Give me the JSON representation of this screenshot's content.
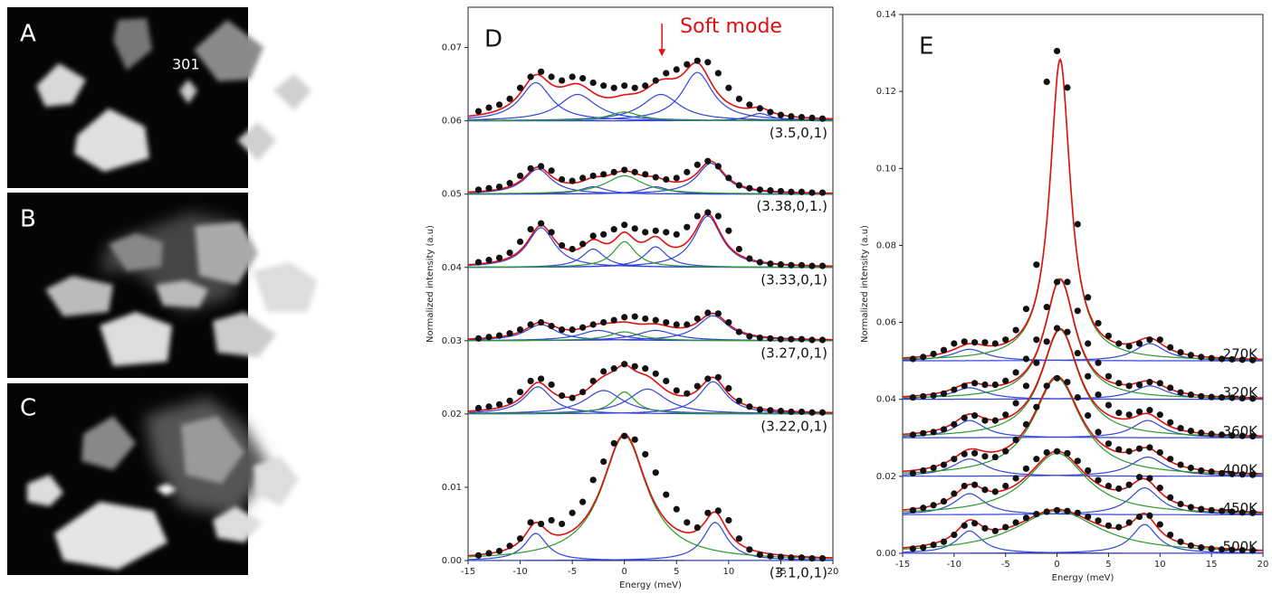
{
  "images": [
    {
      "label": "A",
      "annotation": "301"
    },
    {
      "label": "B"
    },
    {
      "label": "C"
    }
  ],
  "chart_data": [
    {
      "type": "spectra",
      "panel_label": "D",
      "annotation": {
        "text": "Soft mode",
        "x": 3.6,
        "y": 0.0688
      },
      "xlabel": "Energy (meV)",
      "ylabel": "Normalized intensity (a.u)",
      "xlim": [
        -15,
        20
      ],
      "xticks": [
        -15,
        -10,
        -5,
        0,
        5,
        10,
        15,
        20
      ],
      "ylim": [
        0,
        0.0755
      ],
      "yticks": [
        {
          "value": 0,
          "label": "0.00"
        },
        0.01,
        0.02,
        0.03,
        0.04,
        0.05,
        0.06,
        0.07
      ],
      "x": [
        -14,
        -13,
        -12,
        -11,
        -10,
        -9,
        -8,
        -7,
        -6,
        -5,
        -4,
        -3,
        -2,
        -1,
        0,
        1,
        2,
        3,
        4,
        5,
        6,
        7,
        8,
        9,
        10,
        11,
        12,
        13,
        14,
        15,
        16,
        17,
        18,
        19
      ],
      "point_color": "#111111",
      "fit_color": "#e01010",
      "series": [
        {
          "name": "(3.5,0,1)",
          "baseline": 0.06,
          "values": [
            0.0613,
            0.0618,
            0.0622,
            0.063,
            0.0645,
            0.066,
            0.0667,
            0.066,
            0.0655,
            0.066,
            0.0658,
            0.0652,
            0.0648,
            0.0645,
            0.0648,
            0.0645,
            0.0648,
            0.0655,
            0.0665,
            0.067,
            0.0677,
            0.0682,
            0.068,
            0.0665,
            0.0645,
            0.063,
            0.0622,
            0.0617,
            0.0612,
            0.0608,
            0.0606,
            0.0605,
            0.0604,
            0.0603
          ],
          "peaks": [
            {
              "center": -8.5,
              "height": 0.0052,
              "width": 1.8,
              "color": "#3344dd"
            },
            {
              "center": -4.5,
              "height": 0.0036,
              "width": 2.2,
              "color": "#3344dd"
            },
            {
              "center": 3.5,
              "height": 0.0036,
              "width": 2.2,
              "color": "#3344dd"
            },
            {
              "center": 7,
              "height": 0.0066,
              "width": 1.8,
              "color": "#3344dd"
            },
            {
              "center": 13,
              "height": 0.001,
              "width": 1.3,
              "color": "#3344dd"
            },
            {
              "center": 0,
              "height": 0.0012,
              "width": 1.8,
              "color": "#2a9a2a"
            }
          ]
        },
        {
          "name": "(3.38,0,1.)",
          "baseline": 0.05,
          "values": [
            0.0506,
            0.0508,
            0.051,
            0.0515,
            0.0525,
            0.0535,
            0.0538,
            0.0532,
            0.052,
            0.0518,
            0.0522,
            0.0525,
            0.0527,
            0.053,
            0.0533,
            0.053,
            0.0527,
            0.0523,
            0.052,
            0.0522,
            0.053,
            0.054,
            0.0545,
            0.0538,
            0.0522,
            0.0512,
            0.0508,
            0.0506,
            0.0505,
            0.0504,
            0.0503,
            0.0503,
            0.0502,
            0.0502
          ],
          "peaks": [
            {
              "center": -8.3,
              "height": 0.0034,
              "width": 1.6,
              "color": "#3344dd"
            },
            {
              "center": 8.3,
              "height": 0.0042,
              "width": 1.6,
              "color": "#3344dd"
            },
            {
              "center": -3,
              "height": 0.001,
              "width": 1.5,
              "color": "#3344dd"
            },
            {
              "center": 3,
              "height": 0.001,
              "width": 1.5,
              "color": "#3344dd"
            },
            {
              "center": 0,
              "height": 0.0025,
              "width": 2.2,
              "color": "#2a9a2a"
            }
          ]
        },
        {
          "name": "(3.33,0,1)",
          "baseline": 0.04,
          "values": [
            0.0407,
            0.041,
            0.0413,
            0.042,
            0.0435,
            0.0452,
            0.046,
            0.0448,
            0.043,
            0.0425,
            0.0432,
            0.0443,
            0.0445,
            0.0452,
            0.0458,
            0.0453,
            0.0448,
            0.045,
            0.0448,
            0.0445,
            0.0455,
            0.047,
            0.0475,
            0.047,
            0.045,
            0.0425,
            0.0412,
            0.0407,
            0.0405,
            0.0404,
            0.0403,
            0.0403,
            0.0402,
            0.0402
          ],
          "peaks": [
            {
              "center": -8,
              "height": 0.0054,
              "width": 1.6,
              "color": "#3344dd"
            },
            {
              "center": 8,
              "height": 0.007,
              "width": 1.6,
              "color": "#3344dd"
            },
            {
              "center": -3,
              "height": 0.0025,
              "width": 1.3,
              "color": "#3344dd"
            },
            {
              "center": 3,
              "height": 0.0028,
              "width": 1.3,
              "color": "#3344dd"
            },
            {
              "center": 0,
              "height": 0.0035,
              "width": 1.3,
              "color": "#2a9a2a"
            }
          ]
        },
        {
          "name": "(3.27,0,1)",
          "baseline": 0.03,
          "values": [
            0.0303,
            0.0305,
            0.0307,
            0.031,
            0.0315,
            0.0322,
            0.0325,
            0.032,
            0.0315,
            0.0315,
            0.0318,
            0.0322,
            0.0325,
            0.0328,
            0.0332,
            0.0333,
            0.033,
            0.0328,
            0.0325,
            0.0322,
            0.0322,
            0.033,
            0.0338,
            0.0337,
            0.0325,
            0.0312,
            0.0306,
            0.0304,
            0.0303,
            0.0302,
            0.0302,
            0.0302,
            0.0301,
            0.0301
          ],
          "peaks": [
            {
              "center": -8,
              "height": 0.0022,
              "width": 1.8,
              "color": "#3344dd"
            },
            {
              "center": 8.5,
              "height": 0.0034,
              "width": 1.8,
              "color": "#3344dd"
            },
            {
              "center": -2.5,
              "height": 0.0014,
              "width": 2.2,
              "color": "#3344dd"
            },
            {
              "center": 3,
              "height": 0.0014,
              "width": 2.2,
              "color": "#3344dd"
            },
            {
              "center": 0,
              "height": 0.0012,
              "width": 1.8,
              "color": "#2a9a2a"
            }
          ]
        },
        {
          "name": "(3.22,0,1)",
          "baseline": 0.02,
          "values": [
            0.0208,
            0.021,
            0.0213,
            0.0218,
            0.023,
            0.0245,
            0.0248,
            0.024,
            0.0225,
            0.0222,
            0.023,
            0.0245,
            0.0258,
            0.0262,
            0.0268,
            0.0265,
            0.0262,
            0.0255,
            0.0245,
            0.0232,
            0.0228,
            0.0238,
            0.0248,
            0.025,
            0.0235,
            0.0218,
            0.021,
            0.0206,
            0.0205,
            0.0204,
            0.0203,
            0.0203,
            0.0202,
            0.0202
          ],
          "peaks": [
            {
              "center": -8.3,
              "height": 0.0037,
              "width": 1.6,
              "color": "#3344dd"
            },
            {
              "center": 8.5,
              "height": 0.0044,
              "width": 1.6,
              "color": "#3344dd"
            },
            {
              "center": -2,
              "height": 0.0032,
              "width": 2.2,
              "color": "#3344dd"
            },
            {
              "center": 2.2,
              "height": 0.0034,
              "width": 2.2,
              "color": "#3344dd"
            },
            {
              "center": 0,
              "height": 0.003,
              "width": 1.3,
              "color": "#2a9a2a"
            }
          ]
        },
        {
          "name": "(3.1,0,1)",
          "baseline": 0,
          "values": [
            0.0007,
            0.001,
            0.0013,
            0.002,
            0.003,
            0.0052,
            0.005,
            0.0055,
            0.005,
            0.0065,
            0.008,
            0.011,
            0.0135,
            0.016,
            0.017,
            0.0165,
            0.0145,
            0.012,
            0.009,
            0.007,
            0.0052,
            0.0045,
            0.0065,
            0.0068,
            0.0055,
            0.003,
            0.0015,
            0.0008,
            0.0006,
            0.0005,
            0.0004,
            0.0004,
            0.0003,
            0.0003
          ],
          "peaks": [
            {
              "center": -8.5,
              "height": 0.0037,
              "width": 1.3,
              "color": "#3344dd"
            },
            {
              "center": 8.7,
              "height": 0.0052,
              "width": 1.4,
              "color": "#3344dd"
            },
            {
              "center": 0,
              "height": 0.017,
              "width": 2.6,
              "color": "#2a9a2a"
            }
          ]
        }
      ]
    },
    {
      "type": "spectra",
      "panel_label": "E",
      "xlabel": "Energy (meV)",
      "ylabel": "Normalized intensity (a.u)",
      "xlim": [
        -15,
        20
      ],
      "xticks": [
        -15,
        -10,
        -5,
        0,
        5,
        10,
        15,
        20
      ],
      "ylim": [
        0,
        0.14
      ],
      "yticks": [
        {
          "value": 0,
          "label": "0.00"
        },
        0.02,
        0.04,
        0.06,
        0.08,
        {
          "value": 0.1,
          "label": "0.10"
        },
        0.12,
        0.14
      ],
      "x": [
        -14,
        -13,
        -12,
        -11,
        -10,
        -9,
        -8,
        -7,
        -6,
        -5,
        -4,
        -3,
        -2,
        -1,
        0,
        1,
        2,
        3,
        4,
        5,
        6,
        7,
        8,
        9,
        10,
        11,
        12,
        13,
        14,
        15,
        16,
        17,
        18,
        19
      ],
      "point_color": "#111111",
      "fit_color": "#e01010",
      "series": [
        {
          "name": "270K",
          "baseline": 0.05,
          "values": [
            0.0505,
            0.051,
            0.0518,
            0.0528,
            0.0545,
            0.055,
            0.0548,
            0.0548,
            0.0545,
            0.0555,
            0.058,
            0.0635,
            0.075,
            0.1225,
            0.1305,
            0.121,
            0.0855,
            0.0665,
            0.0598,
            0.0565,
            0.0545,
            0.0538,
            0.0545,
            0.0555,
            0.0555,
            0.0535,
            0.0522,
            0.0515,
            0.051,
            0.0507,
            0.0505,
            0.0504,
            0.0503,
            0.0502
          ],
          "peaks": [
            {
              "center": -8.5,
              "height": 0.003,
              "width": 2,
              "color": "#3344dd"
            },
            {
              "center": 9,
              "height": 0.0045,
              "width": 1.8,
              "color": "#3344dd"
            },
            {
              "center": 0.3,
              "height": 0.078,
              "width": 1.2,
              "color": "#2a9a2a"
            }
          ]
        },
        {
          "name": "320K",
          "baseline": 0.04,
          "values": [
            0.0405,
            0.0408,
            0.041,
            0.0415,
            0.0425,
            0.0435,
            0.0442,
            0.0438,
            0.0438,
            0.0448,
            0.047,
            0.0505,
            0.0555,
            0.064,
            0.0705,
            0.0705,
            0.063,
            0.0545,
            0.0495,
            0.046,
            0.0442,
            0.0435,
            0.0438,
            0.0445,
            0.0442,
            0.043,
            0.0418,
            0.0412,
            0.0408,
            0.0406,
            0.0405,
            0.0404,
            0.0403,
            0.0402
          ],
          "peaks": [
            {
              "center": -8.5,
              "height": 0.003,
              "width": 2,
              "color": "#3344dd"
            },
            {
              "center": 9,
              "height": 0.0035,
              "width": 2,
              "color": "#3344dd"
            },
            {
              "center": 0.3,
              "height": 0.031,
              "width": 1.8,
              "color": "#2a9a2a"
            }
          ]
        },
        {
          "name": "360K",
          "baseline": 0.03,
          "values": [
            0.0308,
            0.0312,
            0.0315,
            0.0322,
            0.0335,
            0.0352,
            0.0358,
            0.0345,
            0.0345,
            0.036,
            0.039,
            0.0435,
            0.0495,
            0.055,
            0.0585,
            0.0575,
            0.052,
            0.046,
            0.0412,
            0.0385,
            0.0365,
            0.036,
            0.0368,
            0.0372,
            0.036,
            0.034,
            0.0325,
            0.0318,
            0.0313,
            0.031,
            0.0308,
            0.0306,
            0.0305,
            0.0304
          ],
          "peaks": [
            {
              "center": -8.5,
              "height": 0.0045,
              "width": 1.8,
              "color": "#3344dd"
            },
            {
              "center": 8.8,
              "height": 0.0045,
              "width": 1.8,
              "color": "#3344dd"
            },
            {
              "center": 0.3,
              "height": 0.028,
              "width": 2.2,
              "color": "#2a9a2a"
            }
          ]
        },
        {
          "name": "400K",
          "baseline": 0.02,
          "values": [
            0.0208,
            0.0215,
            0.0222,
            0.023,
            0.0245,
            0.0258,
            0.026,
            0.0252,
            0.025,
            0.0265,
            0.0295,
            0.0335,
            0.038,
            0.0435,
            0.0455,
            0.0445,
            0.0405,
            0.0358,
            0.0315,
            0.0285,
            0.027,
            0.0265,
            0.0272,
            0.0275,
            0.0262,
            0.0245,
            0.023,
            0.0222,
            0.0215,
            0.0212,
            0.0208,
            0.0206,
            0.0205,
            0.0204
          ],
          "peaks": [
            {
              "center": -8.5,
              "height": 0.0045,
              "width": 2,
              "color": "#3344dd"
            },
            {
              "center": 8.8,
              "height": 0.005,
              "width": 2,
              "color": "#3344dd"
            },
            {
              "center": 0,
              "height": 0.0255,
              "width": 2.8,
              "color": "#2a9a2a"
            }
          ]
        },
        {
          "name": "450K",
          "baseline": 0.01,
          "values": [
            0.0112,
            0.0118,
            0.0125,
            0.0135,
            0.0155,
            0.0175,
            0.0178,
            0.0165,
            0.016,
            0.0175,
            0.0195,
            0.022,
            0.0245,
            0.0262,
            0.0265,
            0.026,
            0.024,
            0.0215,
            0.019,
            0.0175,
            0.0168,
            0.0178,
            0.0198,
            0.0195,
            0.017,
            0.0145,
            0.0128,
            0.012,
            0.0115,
            0.0112,
            0.011,
            0.0108,
            0.0106,
            0.0105
          ],
          "peaks": [
            {
              "center": -8.5,
              "height": 0.0055,
              "width": 1.8,
              "color": "#3344dd"
            },
            {
              "center": 8.5,
              "height": 0.007,
              "width": 1.8,
              "color": "#3344dd"
            },
            {
              "center": 0,
              "height": 0.016,
              "width": 3.5,
              "color": "#2a9a2a"
            }
          ]
        },
        {
          "name": "500K",
          "baseline": 0,
          "values": [
            0.0012,
            0.0015,
            0.0022,
            0.003,
            0.0048,
            0.0072,
            0.0078,
            0.0065,
            0.0058,
            0.0068,
            0.008,
            0.0092,
            0.0102,
            0.0108,
            0.0112,
            0.011,
            0.0105,
            0.0095,
            0.0085,
            0.0072,
            0.0068,
            0.008,
            0.0095,
            0.0098,
            0.0075,
            0.0048,
            0.003,
            0.002,
            0.0015,
            0.0012,
            0.001,
            0.0009,
            0.0008,
            0.0007
          ],
          "peaks": [
            {
              "center": -8.5,
              "height": 0.0058,
              "width": 1.5,
              "color": "#3344dd"
            },
            {
              "center": 8.5,
              "height": 0.0075,
              "width": 1.5,
              "color": "#3344dd"
            },
            {
              "center": 0,
              "height": 0.011,
              "width": 5,
              "color": "#2a9a2a"
            }
          ]
        }
      ]
    }
  ]
}
